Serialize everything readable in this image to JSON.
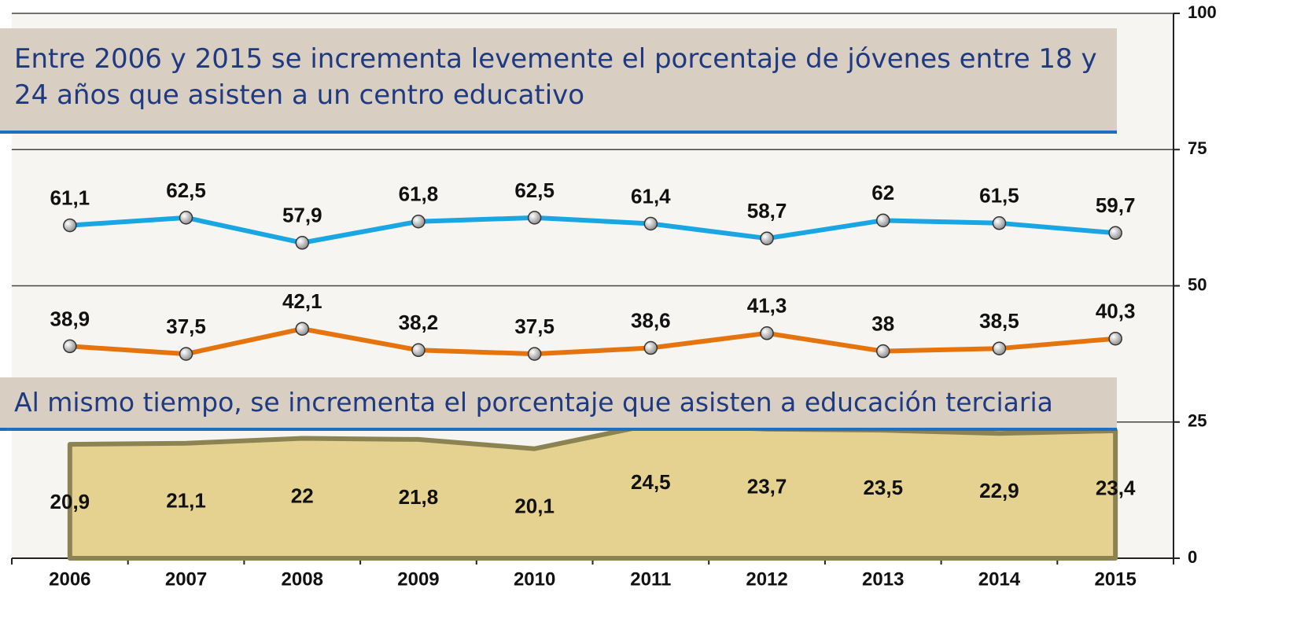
{
  "chart_data": {
    "type": "line",
    "categories": [
      "2006",
      "2007",
      "2008",
      "2009",
      "2010",
      "2011",
      "2012",
      "2013",
      "2014",
      "2015"
    ],
    "series": [
      {
        "color": "#19a6e3",
        "values": [
          61.1,
          62.5,
          57.9,
          61.8,
          62.5,
          61.4,
          58.7,
          62,
          61.5,
          59.7
        ],
        "value_labels": [
          "61,1",
          "62,5",
          "57,9",
          "61,8",
          "62,5",
          "61,4",
          "58,7",
          "62",
          "61,5",
          "59,7"
        ]
      },
      {
        "color": "#e5740f",
        "values": [
          38.9,
          37.5,
          42.1,
          38.2,
          37.5,
          38.6,
          41.3,
          38,
          38.5,
          40.3
        ],
        "value_labels": [
          "38,9",
          "37,5",
          "42,1",
          "38,2",
          "37,5",
          "38,6",
          "41,3",
          "38",
          "38,5",
          "40,3"
        ]
      },
      {
        "color": "#e6d290",
        "style": "area",
        "values": [
          20.9,
          21.1,
          22,
          21.8,
          20.1,
          24.5,
          23.7,
          23.5,
          22.9,
          23.4
        ],
        "value_labels": [
          "20,9",
          "21,1",
          "22",
          "21,8",
          "20,1",
          "24,5",
          "23,7",
          "23,5",
          "22,9",
          "23,4"
        ]
      }
    ],
    "ylim": [
      0,
      100
    ],
    "yticks": [
      0,
      25,
      50,
      75,
      100
    ],
    "grid": true,
    "annotations": [
      "Entre 2006 y 2015 se incrementa levemente el porcentaje de jóvenes entre 18 y 24 años que asisten a un centro educativo",
      "Al mismo tiempo, se incrementa el porcentaje que asisten a educación terciaria"
    ]
  }
}
